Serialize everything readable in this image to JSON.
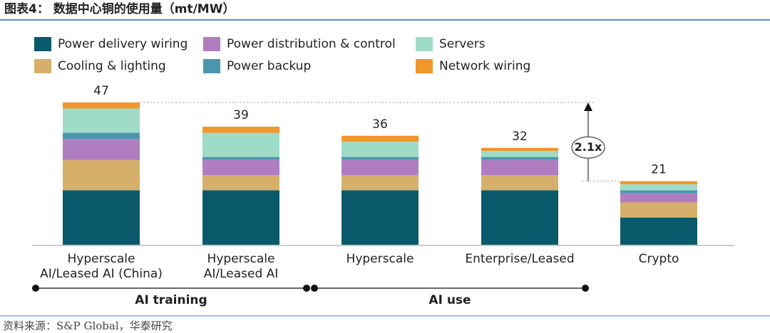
{
  "title": "图表4： 数据中心铜的使用量（mt/MW）",
  "source": "资料来源：S&P Global，华泰研究",
  "chart_data": {
    "type": "stacked_bar",
    "categories": [
      [
        "Hyperscale",
        "AI/Leased AI (China)"
      ],
      [
        "Hyperscale",
        "AI/Leased AI"
      ],
      [
        "Hyperscale"
      ],
      [
        "Enterprise/Leased"
      ],
      [
        "Crypto"
      ]
    ],
    "series": [
      {
        "name": "Power delivery wiring",
        "color": "#0b5a6b",
        "values": [
          18,
          18,
          18,
          18,
          9
        ]
      },
      {
        "name": "Cooling & lighting",
        "color": "#d6b06a",
        "values": [
          10,
          5,
          5,
          5,
          5
        ]
      },
      {
        "name": "Power distribution & control",
        "color": "#b07ec0",
        "values": [
          7,
          5,
          5,
          5,
          3
        ]
      },
      {
        "name": "Power backup",
        "color": "#4a97ad",
        "values": [
          2,
          1,
          1,
          1,
          1
        ]
      },
      {
        "name": "Servers",
        "color": "#9fdcc8",
        "values": [
          8,
          8,
          5,
          2,
          2
        ]
      },
      {
        "name": "Network wiring",
        "color": "#f0962a",
        "values": [
          2,
          2,
          2,
          1,
          1
        ]
      }
    ],
    "totals": [
      47,
      39,
      36,
      32,
      21
    ],
    "annotation": "2.1x",
    "groups": [
      {
        "label": "AI training",
        "from": 0,
        "to": 1
      },
      {
        "label": "AI use",
        "from": 2,
        "to": 3
      }
    ]
  }
}
